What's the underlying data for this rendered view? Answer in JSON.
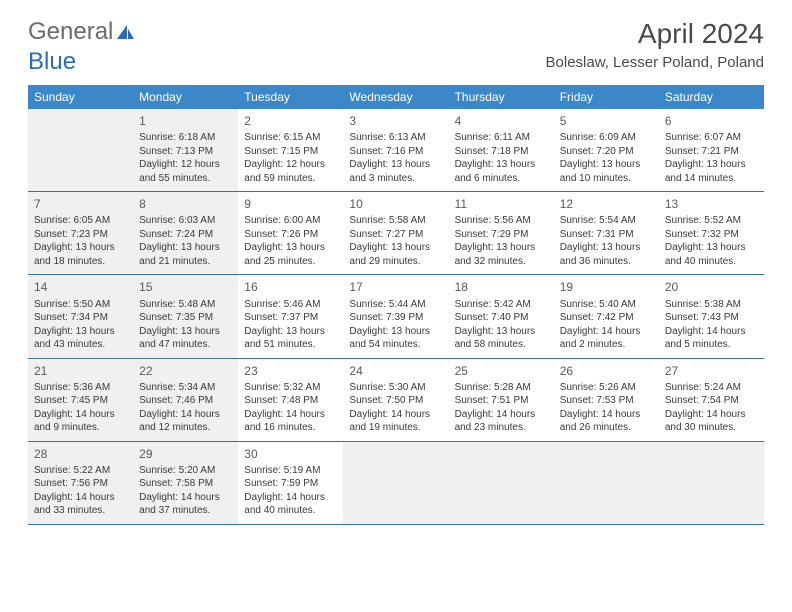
{
  "logo": {
    "part1": "General",
    "part2": "Blue"
  },
  "title": "April 2024",
  "location": "Boleslaw, Lesser Poland, Poland",
  "colors": {
    "header_bg": "#3b87c8",
    "header_text": "#ffffff",
    "rule": "#3b6fa5",
    "shaded": "#f0f0f0",
    "text": "#3a3a3a",
    "logo_blue": "#2a6cb5"
  },
  "dayNames": [
    "Sunday",
    "Monday",
    "Tuesday",
    "Wednesday",
    "Thursday",
    "Friday",
    "Saturday"
  ],
  "weeks": [
    [
      {
        "empty": true,
        "shaded": true
      },
      {
        "n": "1",
        "shaded": true,
        "sr": "6:18 AM",
        "ss": "7:13 PM",
        "dl": "12 hours and 55 minutes."
      },
      {
        "n": "2",
        "sr": "6:15 AM",
        "ss": "7:15 PM",
        "dl": "12 hours and 59 minutes."
      },
      {
        "n": "3",
        "sr": "6:13 AM",
        "ss": "7:16 PM",
        "dl": "13 hours and 3 minutes."
      },
      {
        "n": "4",
        "sr": "6:11 AM",
        "ss": "7:18 PM",
        "dl": "13 hours and 6 minutes."
      },
      {
        "n": "5",
        "sr": "6:09 AM",
        "ss": "7:20 PM",
        "dl": "13 hours and 10 minutes."
      },
      {
        "n": "6",
        "sr": "6:07 AM",
        "ss": "7:21 PM",
        "dl": "13 hours and 14 minutes."
      }
    ],
    [
      {
        "n": "7",
        "shaded": true,
        "sr": "6:05 AM",
        "ss": "7:23 PM",
        "dl": "13 hours and 18 minutes."
      },
      {
        "n": "8",
        "shaded": true,
        "sr": "6:03 AM",
        "ss": "7:24 PM",
        "dl": "13 hours and 21 minutes."
      },
      {
        "n": "9",
        "sr": "6:00 AM",
        "ss": "7:26 PM",
        "dl": "13 hours and 25 minutes."
      },
      {
        "n": "10",
        "sr": "5:58 AM",
        "ss": "7:27 PM",
        "dl": "13 hours and 29 minutes."
      },
      {
        "n": "11",
        "sr": "5:56 AM",
        "ss": "7:29 PM",
        "dl": "13 hours and 32 minutes."
      },
      {
        "n": "12",
        "sr": "5:54 AM",
        "ss": "7:31 PM",
        "dl": "13 hours and 36 minutes."
      },
      {
        "n": "13",
        "sr": "5:52 AM",
        "ss": "7:32 PM",
        "dl": "13 hours and 40 minutes."
      }
    ],
    [
      {
        "n": "14",
        "shaded": true,
        "sr": "5:50 AM",
        "ss": "7:34 PM",
        "dl": "13 hours and 43 minutes."
      },
      {
        "n": "15",
        "shaded": true,
        "sr": "5:48 AM",
        "ss": "7:35 PM",
        "dl": "13 hours and 47 minutes."
      },
      {
        "n": "16",
        "sr": "5:46 AM",
        "ss": "7:37 PM",
        "dl": "13 hours and 51 minutes."
      },
      {
        "n": "17",
        "sr": "5:44 AM",
        "ss": "7:39 PM",
        "dl": "13 hours and 54 minutes."
      },
      {
        "n": "18",
        "sr": "5:42 AM",
        "ss": "7:40 PM",
        "dl": "13 hours and 58 minutes."
      },
      {
        "n": "19",
        "sr": "5:40 AM",
        "ss": "7:42 PM",
        "dl": "14 hours and 2 minutes."
      },
      {
        "n": "20",
        "sr": "5:38 AM",
        "ss": "7:43 PM",
        "dl": "14 hours and 5 minutes."
      }
    ],
    [
      {
        "n": "21",
        "shaded": true,
        "sr": "5:36 AM",
        "ss": "7:45 PM",
        "dl": "14 hours and 9 minutes."
      },
      {
        "n": "22",
        "shaded": true,
        "sr": "5:34 AM",
        "ss": "7:46 PM",
        "dl": "14 hours and 12 minutes."
      },
      {
        "n": "23",
        "sr": "5:32 AM",
        "ss": "7:48 PM",
        "dl": "14 hours and 16 minutes."
      },
      {
        "n": "24",
        "sr": "5:30 AM",
        "ss": "7:50 PM",
        "dl": "14 hours and 19 minutes."
      },
      {
        "n": "25",
        "sr": "5:28 AM",
        "ss": "7:51 PM",
        "dl": "14 hours and 23 minutes."
      },
      {
        "n": "26",
        "sr": "5:26 AM",
        "ss": "7:53 PM",
        "dl": "14 hours and 26 minutes."
      },
      {
        "n": "27",
        "sr": "5:24 AM",
        "ss": "7:54 PM",
        "dl": "14 hours and 30 minutes."
      }
    ],
    [
      {
        "n": "28",
        "shaded": true,
        "sr": "5:22 AM",
        "ss": "7:56 PM",
        "dl": "14 hours and 33 minutes."
      },
      {
        "n": "29",
        "shaded": true,
        "sr": "5:20 AM",
        "ss": "7:58 PM",
        "dl": "14 hours and 37 minutes."
      },
      {
        "n": "30",
        "sr": "5:19 AM",
        "ss": "7:59 PM",
        "dl": "14 hours and 40 minutes."
      },
      {
        "empty": true,
        "shaded": true
      },
      {
        "empty": true,
        "shaded": true
      },
      {
        "empty": true,
        "shaded": true
      },
      {
        "empty": true,
        "shaded": true
      }
    ]
  ],
  "labels": {
    "sunrise": "Sunrise:",
    "sunset": "Sunset:",
    "daylight": "Daylight:"
  }
}
